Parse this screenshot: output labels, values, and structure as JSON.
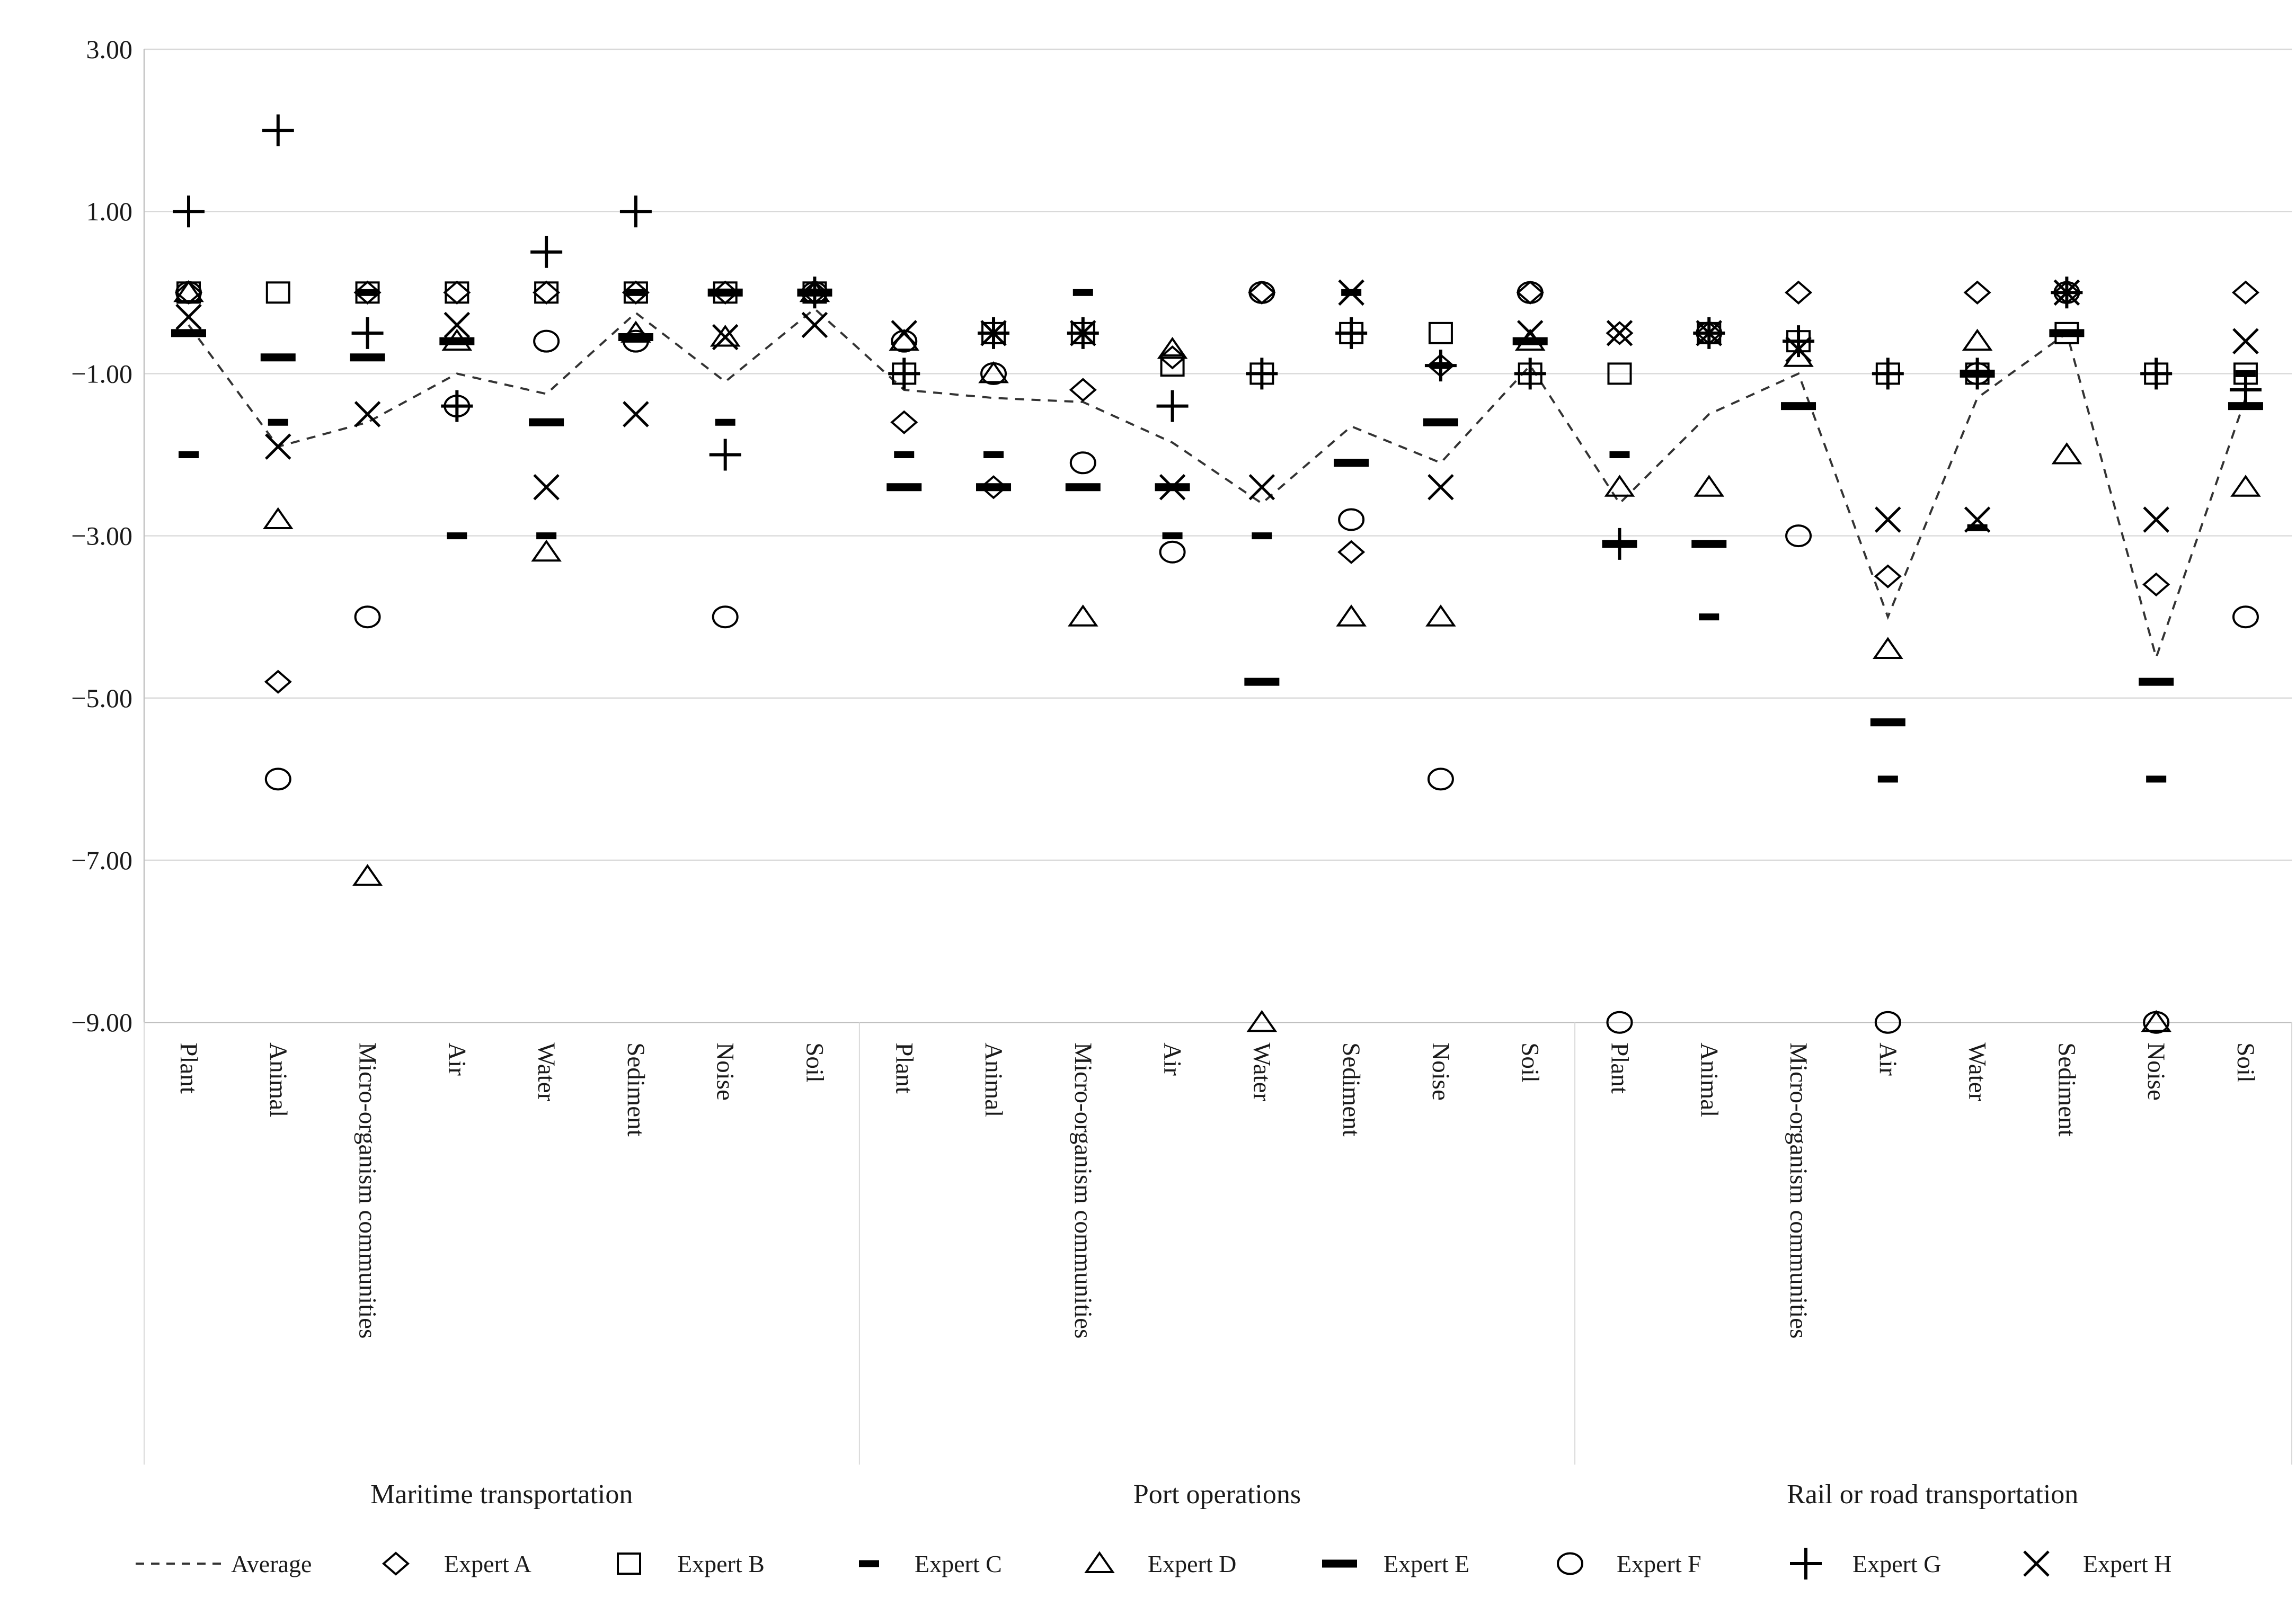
{
  "colors": {
    "background": "#ffffff",
    "marker": "#000000",
    "grid": "#d9d9d9",
    "axis": "#c0c0c0",
    "text": "#1a1a1a",
    "average_line": "#333333"
  },
  "legend": {
    "items": [
      {
        "label": "Average",
        "marker": "dashed-line"
      },
      {
        "label": "Expert A",
        "marker": "diamond"
      },
      {
        "label": "Expert B",
        "marker": "square"
      },
      {
        "label": "Expert C",
        "marker": "dash-small"
      },
      {
        "label": "Expert D",
        "marker": "triangle"
      },
      {
        "label": "Expert E",
        "marker": "dash-large"
      },
      {
        "label": "Expert F",
        "marker": "circle"
      },
      {
        "label": "Expert G",
        "marker": "plus"
      },
      {
        "label": "Expert H",
        "marker": "xmark"
      }
    ]
  },
  "chart_data": {
    "type": "scatter",
    "title": "",
    "xlabel": "",
    "ylabel": "",
    "grid": true,
    "legend_position": "bottom",
    "y_axis": {
      "tick_labels": [
        "3.00",
        "1.00",
        "−1.00",
        "−3.00",
        "−5.00",
        "−7.00",
        "−9.00"
      ],
      "tick_values": [
        3,
        1,
        -1,
        -3,
        -5,
        -7,
        -9
      ],
      "min": -9,
      "max": 3
    },
    "groups": [
      {
        "label": "Maritime transportation",
        "start": 0,
        "end": 7
      },
      {
        "label": "Port operations",
        "start": 8,
        "end": 15
      },
      {
        "label": "Rail or road transportation",
        "start": 16,
        "end": 23
      }
    ],
    "categories": [
      "Plant",
      "Animal",
      "Micro-organism communities",
      "Air",
      "Water",
      "Sediment",
      "Noise",
      "Soil",
      "Plant",
      "Animal",
      "Micro-organism communities",
      "Air",
      "Water",
      "Sediment",
      "Noise",
      "Soil",
      "Plant",
      "Animal",
      "Micro-organism communities",
      "Air",
      "Water",
      "Sediment",
      "Noise",
      "Soil"
    ],
    "series": [
      {
        "name": "Average",
        "marker": "dashed-line",
        "values": [
          -0.4,
          -1.9,
          -1.6,
          -1.0,
          -1.25,
          -0.25,
          -1.1,
          -0.2,
          -1.2,
          -1.3,
          -1.35,
          -1.85,
          -2.6,
          -1.65,
          -2.1,
          -0.9,
          -2.6,
          -1.5,
          -1.0,
          -4.0,
          -1.3,
          -0.5,
          -4.5,
          -1.3
        ]
      },
      {
        "name": "Expert A",
        "marker": "diamond",
        "values": [
          0,
          -4.8,
          0,
          0,
          0,
          0,
          0,
          0,
          -1.6,
          -2.4,
          -1.2,
          -0.8,
          0,
          -3.2,
          -0.9,
          0,
          -0.5,
          -0.5,
          0,
          -3.5,
          0,
          0,
          -3.6,
          0
        ]
      },
      {
        "name": "Expert B",
        "marker": "square",
        "values": [
          0,
          0,
          0,
          0,
          0,
          0,
          0,
          0,
          -1.0,
          -0.5,
          -0.5,
          -0.9,
          -1.0,
          -0.5,
          -0.5,
          -1.0,
          -1.0,
          -0.5,
          -0.6,
          -1.0,
          -1.0,
          -0.5,
          -1.0,
          -1.0
        ]
      },
      {
        "name": "Expert C",
        "marker": "dash-small",
        "values": [
          -2.0,
          -1.6,
          0,
          -3.0,
          -3.0,
          0,
          -1.6,
          0,
          -2.0,
          -2.0,
          0,
          -3.0,
          -3.0,
          0,
          -0.9,
          -0.6,
          -2.0,
          -4.0,
          -1.4,
          -6.0,
          -2.9,
          -0.5,
          -6.0,
          -1.0
        ]
      },
      {
        "name": "Expert D",
        "marker": "triangle",
        "values": [
          0,
          -2.8,
          -7.2,
          -0.6,
          -3.2,
          -0.5,
          -0.55,
          0,
          -0.6,
          -1.0,
          -4.0,
          -0.7,
          -9.0,
          -4.0,
          -4.0,
          -0.6,
          -2.4,
          -2.4,
          -0.8,
          -4.4,
          -0.6,
          -2.0,
          -9.0,
          -2.4
        ]
      },
      {
        "name": "Expert E",
        "marker": "dash-large",
        "values": [
          -0.5,
          -0.8,
          -0.8,
          -0.6,
          -1.6,
          -0.55,
          0,
          0,
          -2.4,
          -2.4,
          -2.4,
          -2.4,
          -4.8,
          -2.1,
          -1.6,
          -0.6,
          -3.1,
          -3.1,
          -1.4,
          -5.3,
          -1.0,
          -0.5,
          -4.8,
          -1.4
        ]
      },
      {
        "name": "Expert F",
        "marker": "circle",
        "values": [
          0,
          -6.0,
          -4.0,
          -1.4,
          -0.6,
          -0.6,
          -4.0,
          0,
          -0.6,
          -1.0,
          -2.1,
          -3.2,
          0,
          -2.8,
          -6.0,
          0,
          -9.0,
          -0.5,
          -3.0,
          -9.0,
          -1.0,
          0,
          -9.0,
          -4.0
        ]
      },
      {
        "name": "Expert G",
        "marker": "plus",
        "values": [
          1.0,
          2.0,
          -0.5,
          -1.4,
          0.5,
          1.0,
          -2.0,
          0,
          -1.0,
          -0.5,
          -0.5,
          -1.4,
          -1.0,
          -0.5,
          -0.9,
          -1.0,
          -3.1,
          -0.5,
          -0.6,
          -1.0,
          -1.0,
          0,
          -1.0,
          -1.2
        ]
      },
      {
        "name": "Expert H",
        "marker": "xmark",
        "values": [
          -0.3,
          -1.9,
          -1.5,
          -0.4,
          -2.4,
          -1.5,
          -0.55,
          -0.4,
          -0.5,
          -0.5,
          -0.5,
          -2.4,
          -2.4,
          0,
          -2.4,
          -0.5,
          -0.5,
          -0.5,
          -0.7,
          -2.8,
          -2.8,
          0,
          -2.8,
          -0.6
        ]
      }
    ]
  }
}
